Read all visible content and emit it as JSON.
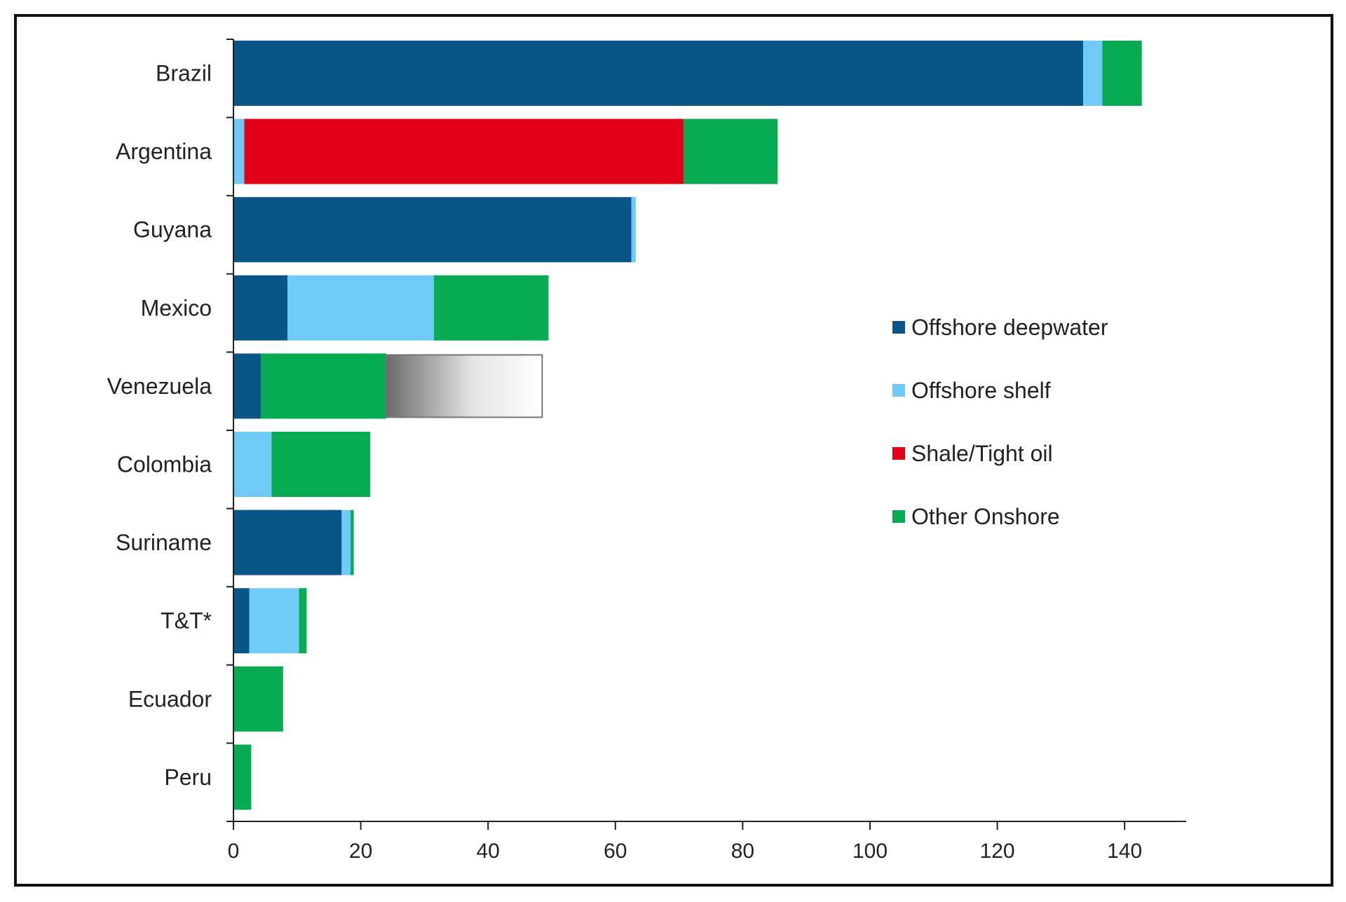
{
  "chart_data": {
    "type": "bar",
    "orientation": "horizontal",
    "stacked": true,
    "categories": [
      "Brazil",
      "Argentina",
      "Guyana",
      "Mexico",
      "Venezuela",
      "Colombia",
      "Suriname",
      "T&T*",
      "Ecuador",
      "Peru"
    ],
    "series": [
      {
        "name": "Offshore deepwater",
        "color": "#0a5587",
        "values": [
          133.5,
          0,
          62.5,
          8.5,
          4.3,
          0,
          17,
          2.5,
          0,
          0
        ]
      },
      {
        "name": "Offshore shelf",
        "color": "#6fcaf8",
        "values": [
          3,
          1.7,
          0.7,
          23,
          0,
          6,
          1.4,
          7.8,
          0,
          0
        ]
      },
      {
        "name": "Shale/Tight oil",
        "color": "#e10018",
        "values": [
          0,
          69,
          0,
          0,
          0,
          0,
          0,
          0,
          0,
          0
        ]
      },
      {
        "name": "Other Onshore",
        "color": "#08aa52",
        "values": [
          6.2,
          14.8,
          0,
          18,
          19.7,
          15.5,
          0.5,
          1.2,
          7.8,
          2.8
        ]
      }
    ],
    "unlabeled_segment": {
      "category": "Venezuela",
      "from": 24,
      "to": 48.5,
      "fill": "gradient grey to white",
      "outline": "#777777"
    },
    "xlim": [
      0,
      150
    ],
    "xticks": [
      "0",
      "20",
      "40",
      "60",
      "80",
      "100",
      "120",
      "140"
    ],
    "title": "",
    "xlabel": "",
    "ylabel": "",
    "legend_position": "right-middle",
    "grid": false
  }
}
